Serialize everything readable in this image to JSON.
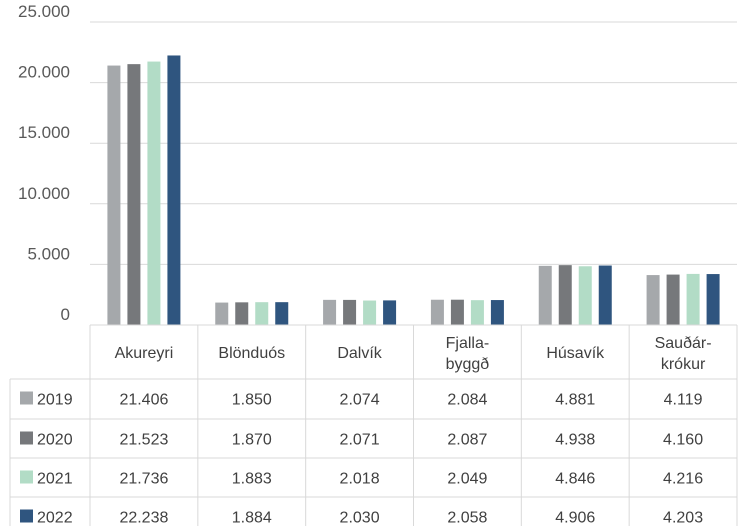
{
  "chart_data": {
    "type": "bar",
    "categories": [
      "Akureyri",
      "Blönduós",
      "Dalvík",
      "Fjalla-\nbyggð",
      "Húsavík",
      "Sauðár-\nkrókur"
    ],
    "series": [
      {
        "name": "2019",
        "color": "#a5a8ab",
        "values": [
          21406,
          1850,
          2074,
          2084,
          4881,
          4119
        ],
        "labels": [
          "21.406",
          "1.850",
          "2.074",
          "2.084",
          "4.881",
          "4.119"
        ]
      },
      {
        "name": "2020",
        "color": "#76787b",
        "values": [
          21523,
          1870,
          2071,
          2087,
          4938,
          4160
        ],
        "labels": [
          "21.523",
          "1.870",
          "2.071",
          "2.087",
          "4.938",
          "4.160"
        ]
      },
      {
        "name": "2021",
        "color": "#b2dcc6",
        "values": [
          21736,
          1883,
          2018,
          2049,
          4846,
          4216
        ],
        "labels": [
          "21.736",
          "1.883",
          "2.018",
          "2.049",
          "4.846",
          "4.216"
        ]
      },
      {
        "name": "2022",
        "color": "#2f557f",
        "values": [
          22238,
          1884,
          2030,
          2058,
          4906,
          4203
        ],
        "labels": [
          "22.238",
          "1.884",
          "2.030",
          "2.058",
          "4.906",
          "4.203"
        ]
      }
    ],
    "yticks": [
      "0",
      "5.000",
      "10.000",
      "15.000",
      "20.000",
      "25.000"
    ],
    "ytick_values": [
      0,
      5000,
      10000,
      15000,
      20000,
      25000
    ],
    "ylim": [
      0,
      25000
    ],
    "grid": true,
    "legend": "data-table"
  }
}
